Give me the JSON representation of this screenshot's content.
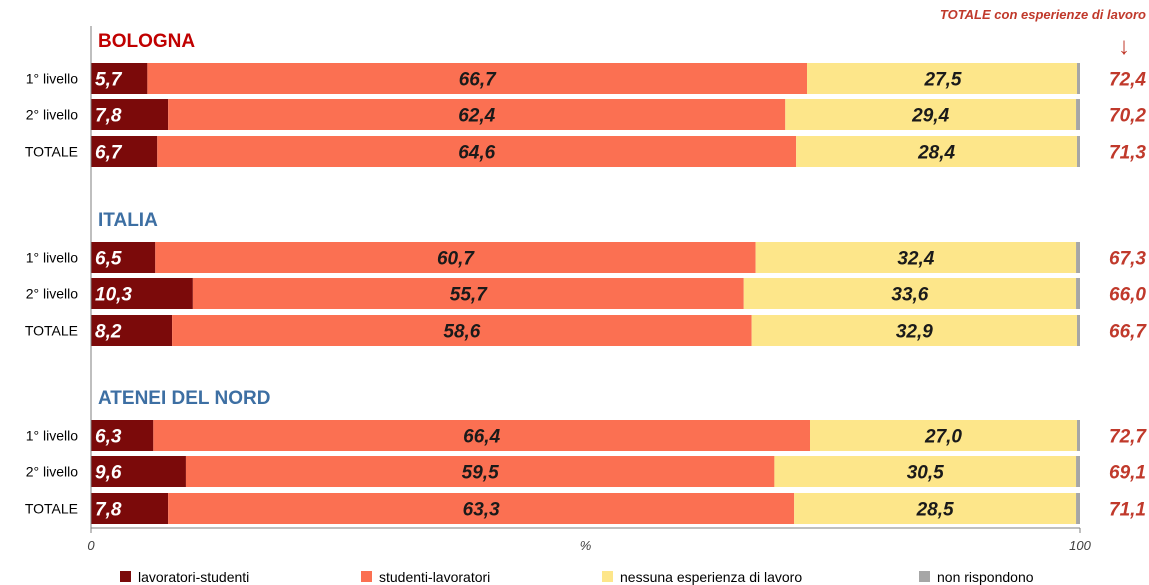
{
  "chart_data": {
    "type": "bar",
    "orientation": "horizontal",
    "stacked": true,
    "xlim": [
      0,
      100
    ],
    "x_ticks": [
      "0",
      "100"
    ],
    "xlabel": "%",
    "total_header": "TOTALE con esperienze di lavoro",
    "total_arrow": "↓",
    "colors": {
      "lavoratori-studenti": "#7b0a0a",
      "studenti-lavoratori": "#fb7052",
      "nessuna esperienza di lavoro": "#fde68a",
      "non rispondono": "#a6a6a6",
      "total_text": "#c0392b",
      "group_bologna": "#c00000",
      "group_other": "#3d6fa3"
    },
    "series": [
      {
        "name": "lavoratori-studenti",
        "color": "#7b0a0a"
      },
      {
        "name": "studenti-lavoratori",
        "color": "#fb7052"
      },
      {
        "name": "nessuna esperienza di lavoro",
        "color": "#fde68a"
      },
      {
        "name": "non rispondono",
        "color": "#a6a6a6"
      }
    ],
    "groups": [
      {
        "title": "BOLOGNA",
        "title_color": "#c00000",
        "rows": [
          {
            "label": "1° livello",
            "lav_stud": 5.7,
            "stud_lav": 66.7,
            "nessuna": 27.5,
            "non_risp": 0.1,
            "lav_stud_label": "5,7",
            "stud_lav_label": "66,7",
            "nessuna_label": "27,5",
            "total": "72,4"
          },
          {
            "label": "2° livello",
            "lav_stud": 7.8,
            "stud_lav": 62.4,
            "nessuna": 29.4,
            "non_risp": 0.4,
            "lav_stud_label": "7,8",
            "stud_lav_label": "62,4",
            "nessuna_label": "29,4",
            "total": "70,2"
          },
          {
            "label": "TOTALE",
            "lav_stud": 6.7,
            "stud_lav": 64.6,
            "nessuna": 28.4,
            "non_risp": 0.3,
            "lav_stud_label": "6,7",
            "stud_lav_label": "64,6",
            "nessuna_label": "28,4",
            "total": "71,3"
          }
        ]
      },
      {
        "title": "ITALIA",
        "title_color": "#3d6fa3",
        "rows": [
          {
            "label": "1° livello",
            "lav_stud": 6.5,
            "stud_lav": 60.7,
            "nessuna": 32.4,
            "non_risp": 0.4,
            "lav_stud_label": "6,5",
            "stud_lav_label": "60,7",
            "nessuna_label": "32,4",
            "total": "67,3"
          },
          {
            "label": "2° livello",
            "lav_stud": 10.3,
            "stud_lav": 55.7,
            "nessuna": 33.6,
            "non_risp": 0.4,
            "lav_stud_label": "10,3",
            "stud_lav_label": "55,7",
            "nessuna_label": "33,6",
            "total": "66,0"
          },
          {
            "label": "TOTALE",
            "lav_stud": 8.2,
            "stud_lav": 58.6,
            "nessuna": 32.9,
            "non_risp": 0.3,
            "lav_stud_label": "8,2",
            "stud_lav_label": "58,6",
            "nessuna_label": "32,9",
            "total": "66,7"
          }
        ]
      },
      {
        "title": "ATENEI DEL NORD",
        "title_color": "#3d6fa3",
        "rows": [
          {
            "label": "1° livello",
            "lav_stud": 6.3,
            "stud_lav": 66.4,
            "nessuna": 27.0,
            "non_risp": 0.3,
            "lav_stud_label": "6,3",
            "stud_lav_label": "66,4",
            "nessuna_label": "27,0",
            "total": "72,7"
          },
          {
            "label": "2° livello",
            "lav_stud": 9.6,
            "stud_lav": 59.5,
            "nessuna": 30.5,
            "non_risp": 0.4,
            "lav_stud_label": "9,6",
            "stud_lav_label": "59,5",
            "nessuna_label": "30,5",
            "total": "69,1"
          },
          {
            "label": "TOTALE",
            "lav_stud": 7.8,
            "stud_lav": 63.3,
            "nessuna": 28.5,
            "non_risp": 0.4,
            "lav_stud_label": "7,8",
            "stud_lav_label": "63,3",
            "nessuna_label": "28,5",
            "total": "71,1"
          }
        ]
      }
    ],
    "legend": {
      "placement": "bottom",
      "items": [
        "lavoratori-studenti",
        "studenti-lavoratori",
        "nessuna esperienza di lavoro",
        "non rispondono"
      ]
    }
  }
}
